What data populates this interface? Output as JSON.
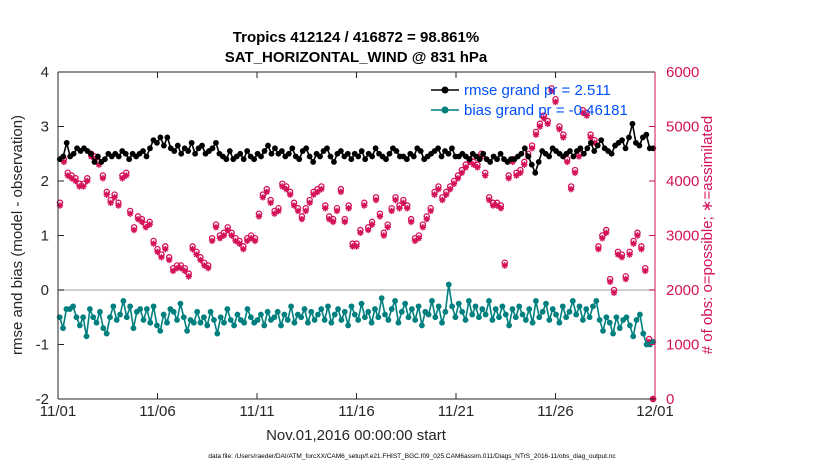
{
  "chart_data": {
    "type": "line",
    "title_line1": "Tropics 412124 / 416872 = 98.861%",
    "title_line2": "SAT_HORIZONTAL_WIND @ 831 hPa",
    "xlabel": "Nov.01,2016 00:00:00 start",
    "ylabel": "rmse and bias (model - observation)",
    "ylabel_right": "# of obs: o=possible; ∗=assimilated",
    "ylim": [
      -2,
      4
    ],
    "ylim_right": [
      0,
      6000
    ],
    "xlim": [
      0,
      30
    ],
    "x_ticks": [
      0,
      5,
      10,
      15,
      20,
      25,
      30
    ],
    "x_tick_labels": [
      "11/01",
      "11/06",
      "11/11",
      "11/16",
      "11/21",
      "11/26",
      "12/01"
    ],
    "y_ticks": [
      -2,
      -1,
      0,
      1,
      2,
      3,
      4
    ],
    "y_tick_labels": [
      "-2",
      "-1",
      "0",
      "1",
      "2",
      "3",
      "4"
    ],
    "y_right_ticks": [
      0,
      1000,
      2000,
      3000,
      4000,
      5000,
      6000
    ],
    "y_right_tick_labels": [
      "0",
      "1000",
      "2000",
      "3000",
      "4000",
      "5000",
      "6000"
    ],
    "legend_location": "top-right",
    "footer": "data file: /Users/raeder/DAI/ATM_forcXX/CAM6_setup/f.e21.FHIST_BGC.f09_025.CAM6assim.011/Diags_NTrS_2016-11/obs_diag_output.nc",
    "colors": {
      "rmse": "#000000",
      "bias": "#007f7f",
      "obs": "#d41159",
      "legend_text": "#0050ff",
      "zero_line": "#bfbfbf"
    },
    "series": [
      {
        "name": "rmse grand pr = 2.511",
        "axis": "left",
        "values": [
          2.4,
          2.45,
          2.7,
          2.45,
          2.5,
          2.6,
          2.55,
          2.6,
          2.55,
          2.5,
          2.35,
          2.45,
          2.35,
          2.4,
          2.5,
          2.45,
          2.5,
          2.45,
          2.55,
          2.5,
          2.4,
          2.5,
          2.45,
          2.5,
          2.55,
          2.45,
          2.6,
          2.75,
          2.7,
          2.8,
          2.65,
          2.8,
          2.6,
          2.55,
          2.65,
          2.5,
          2.6,
          2.55,
          2.7,
          2.5,
          2.6,
          2.65,
          2.5,
          2.55,
          2.6,
          2.7,
          2.5,
          2.45,
          2.4,
          2.55,
          2.4,
          2.45,
          2.5,
          2.4,
          2.55,
          2.45,
          2.4,
          2.5,
          2.45,
          2.55,
          2.65,
          2.5,
          2.6,
          2.5,
          2.55,
          2.45,
          2.5,
          2.6,
          2.45,
          2.4,
          2.55,
          2.6,
          2.45,
          2.35,
          2.5,
          2.45,
          2.55,
          2.6,
          2.45,
          2.35,
          2.5,
          2.55,
          2.45,
          2.5,
          2.4,
          2.5,
          2.45,
          2.55,
          2.4,
          2.5,
          2.45,
          2.6,
          2.5,
          2.45,
          2.4,
          2.5,
          2.6,
          2.55,
          2.45,
          2.45,
          2.4,
          2.5,
          2.45,
          2.6,
          2.55,
          2.4,
          2.45,
          2.5,
          2.55,
          2.6,
          2.45,
          2.55,
          2.5,
          2.6,
          2.45,
          2.45,
          2.5,
          2.45,
          2.4,
          2.5,
          2.45,
          2.4,
          2.5,
          2.4,
          2.35,
          2.45,
          2.4,
          2.5,
          2.4,
          2.35,
          2.4,
          2.4,
          2.45,
          2.5,
          2.6,
          2.45,
          2.3,
          2.15,
          2.35,
          2.55,
          2.5,
          2.45,
          2.6,
          2.55,
          2.5,
          2.45,
          2.5,
          2.55,
          2.45,
          2.55,
          2.6,
          2.5,
          2.6,
          2.7,
          2.55,
          2.65,
          2.75,
          2.6,
          2.55,
          2.5,
          2.65,
          2.7,
          2.75,
          2.6,
          2.8,
          3.05,
          2.7,
          2.65,
          2.8,
          2.85,
          2.6,
          2.6
        ]
      },
      {
        "name": "bias grand pr = -0.46181",
        "axis": "left",
        "values": [
          -0.5,
          -0.7,
          -0.35,
          -0.35,
          -0.3,
          -0.5,
          -0.65,
          -0.5,
          -0.85,
          -0.35,
          -0.5,
          -0.6,
          -0.4,
          -0.7,
          -0.8,
          -0.5,
          -0.3,
          -0.55,
          -0.45,
          -0.2,
          -0.5,
          -0.3,
          -0.7,
          -0.4,
          -0.35,
          -0.55,
          -0.35,
          -0.6,
          -0.3,
          -0.65,
          -0.75,
          -0.45,
          -0.6,
          -0.35,
          -0.4,
          -0.55,
          -0.25,
          -0.5,
          -0.75,
          -0.55,
          -0.6,
          -0.4,
          -0.6,
          -0.5,
          -0.65,
          -0.4,
          -0.55,
          -0.8,
          -0.5,
          -0.6,
          -0.35,
          -0.55,
          -0.65,
          -0.45,
          -0.55,
          -0.6,
          -0.35,
          -0.5,
          -0.6,
          -0.55,
          -0.45,
          -0.65,
          -0.4,
          -0.55,
          -0.5,
          -0.4,
          -0.65,
          -0.45,
          -0.55,
          -0.3,
          -0.6,
          -0.45,
          -0.5,
          -0.35,
          -0.6,
          -0.4,
          -0.55,
          -0.45,
          -0.35,
          -0.55,
          -0.3,
          -0.6,
          -0.45,
          -0.35,
          -0.55,
          -0.4,
          -0.65,
          -0.3,
          -0.45,
          -0.55,
          -0.25,
          -0.5,
          -0.4,
          -0.6,
          -0.35,
          -0.5,
          -0.15,
          -0.45,
          -0.55,
          -0.35,
          -0.2,
          -0.6,
          -0.4,
          -0.25,
          -0.5,
          -0.35,
          -0.55,
          -0.3,
          -0.65,
          -0.4,
          -0.45,
          -0.2,
          -0.5,
          -0.3,
          -0.6,
          -0.4,
          0.1,
          -0.3,
          -0.5,
          -0.25,
          -0.4,
          -0.55,
          -0.2,
          -0.45,
          -0.3,
          -0.5,
          -0.35,
          -0.45,
          -0.2,
          -0.55,
          -0.35,
          -0.5,
          -0.3,
          -0.45,
          -0.65,
          -0.35,
          -0.5,
          -0.3,
          -0.45,
          -0.55,
          -0.35,
          -0.6,
          -0.2,
          -0.5,
          -0.4,
          -0.25,
          -0.55,
          -0.35,
          -0.45,
          -0.6,
          -0.3,
          -0.5,
          -0.4,
          -0.2,
          -0.45,
          -0.3,
          -0.55,
          -0.35,
          -0.5,
          -0.3,
          -0.2,
          -0.55,
          -0.75,
          -0.5,
          -0.6,
          -0.8,
          -0.5,
          -0.7,
          -0.55,
          -0.5,
          -0.65,
          -0.85,
          -0.55,
          -0.45,
          -0.8,
          -1.0,
          -1.0,
          -0.95
        ]
      },
      {
        "name": "obs possible (o)",
        "axis": "right",
        "values": [
          3600,
          4400,
          4150,
          4100,
          4050,
          3950,
          3950,
          4050,
          4500,
          4450,
          4350,
          4100,
          3800,
          3650,
          3750,
          3600,
          4100,
          4150,
          3450,
          3150,
          3350,
          3300,
          3200,
          3250,
          2900,
          2750,
          2650,
          2800,
          2600,
          2400,
          2450,
          2450,
          2400,
          2300,
          2800,
          2700,
          2600,
          2500,
          2450,
          2950,
          3200,
          3000,
          3050,
          3150,
          3050,
          2950,
          2900,
          2800,
          2950,
          3000,
          2950,
          3400,
          3750,
          3850,
          3650,
          3450,
          3500,
          3950,
          3900,
          3800,
          3600,
          3500,
          3350,
          3500,
          3650,
          3800,
          3850,
          3900,
          3550,
          3350,
          3300,
          3500,
          3850,
          3300,
          3550,
          2850,
          2850,
          3100,
          3600,
          3150,
          3250,
          3700,
          3400,
          3050,
          3200,
          3500,
          3700,
          3550,
          3650,
          3550,
          3300,
          2950,
          3000,
          3200,
          3350,
          3500,
          3800,
          3900,
          3700,
          3800,
          3900,
          4000,
          4100,
          4200,
          4300,
          4400,
          4350,
          4300,
          4500,
          4150,
          3700,
          3600,
          3600,
          3550,
          2500,
          4100,
          4400,
          4150,
          4200,
          4350,
          4500,
          4650,
          4900,
          5050,
          5200,
          5100,
          5700,
          5500,
          5000,
          4850,
          4400,
          3900,
          4200,
          4500,
          5300,
          5250,
          4850,
          4750,
          2800,
          3000,
          3100,
          2200,
          2000,
          2700,
          2650,
          2250,
          2700,
          2900,
          3050,
          2800,
          2400,
          1100,
          0
        ]
      },
      {
        "name": "obs assimilated (∗)",
        "axis": "right",
        "values": [
          3550,
          4350,
          4100,
          4050,
          4000,
          3900,
          3900,
          4000,
          4450,
          4400,
          4300,
          4050,
          3750,
          3600,
          3700,
          3550,
          4050,
          4100,
          3400,
          3100,
          3300,
          3250,
          3150,
          3200,
          2850,
          2700,
          2600,
          2750,
          2550,
          2350,
          2400,
          2400,
          2350,
          2250,
          2750,
          2650,
          2550,
          2450,
          2400,
          2900,
          3150,
          2950,
          3000,
          3100,
          3000,
          2900,
          2850,
          2750,
          2900,
          2950,
          2900,
          3350,
          3700,
          3800,
          3600,
          3400,
          3450,
          3900,
          3850,
          3750,
          3550,
          3450,
          3300,
          3450,
          3600,
          3750,
          3800,
          3850,
          3500,
          3300,
          3250,
          3450,
          3800,
          3250,
          3500,
          2800,
          2800,
          3050,
          3550,
          3100,
          3200,
          3650,
          3350,
          3000,
          3150,
          3450,
          3650,
          3500,
          3600,
          3500,
          3250,
          2900,
          2950,
          3150,
          3300,
          3450,
          3750,
          3850,
          3650,
          3750,
          3850,
          3950,
          4050,
          4150,
          4250,
          4350,
          4300,
          4250,
          4450,
          4100,
          3650,
          3550,
          3550,
          3500,
          2450,
          4050,
          4350,
          4100,
          4150,
          4300,
          4450,
          4600,
          4850,
          5000,
          5150,
          5050,
          5650,
          5450,
          4950,
          4800,
          4350,
          3850,
          4150,
          4450,
          5250,
          5200,
          4800,
          4700,
          2750,
          2950,
          3050,
          2150,
          1950,
          2650,
          2600,
          2200,
          2650,
          2850,
          3000,
          2750,
          2350,
          1050,
          0
        ]
      }
    ]
  }
}
